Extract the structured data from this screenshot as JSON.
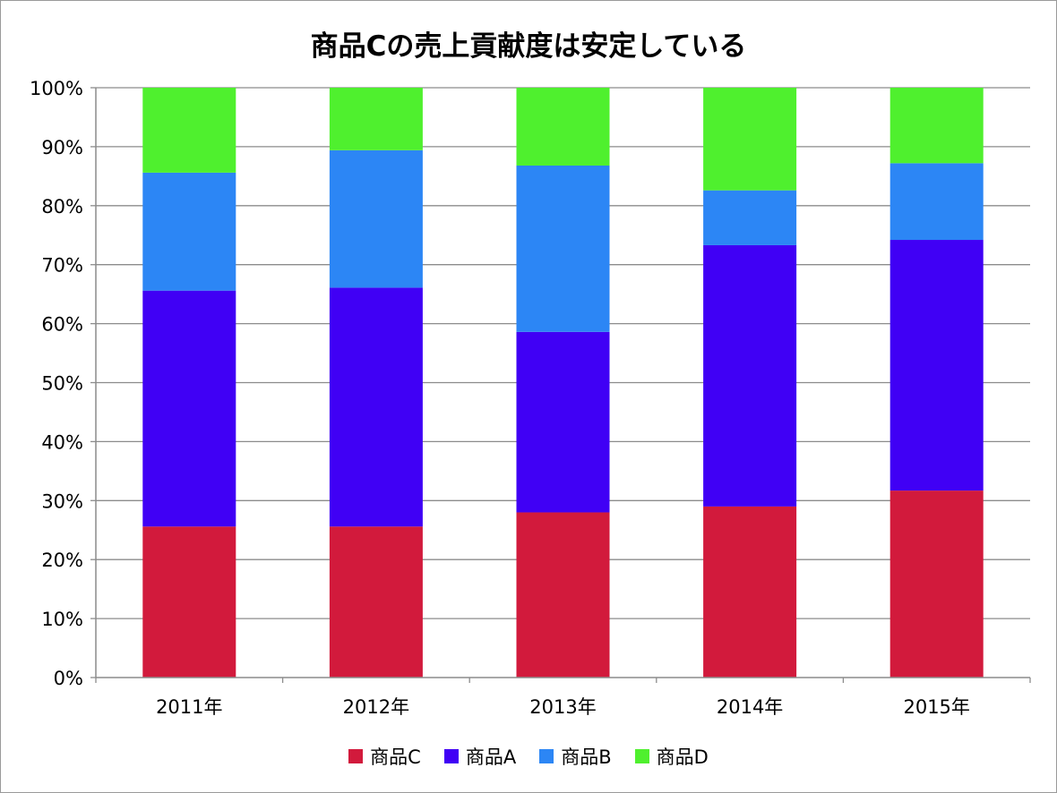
{
  "chart_data": {
    "type": "bar",
    "stacked": true,
    "title": "商品Cの売上貢献度は安定している",
    "categories": [
      "2011年",
      "2012年",
      "2013年",
      "2014年",
      "2015年"
    ],
    "yticks": [
      "0%",
      "10%",
      "20%",
      "30%",
      "40%",
      "50%",
      "60%",
      "70%",
      "80%",
      "90%",
      "100%"
    ],
    "ylim": [
      0,
      100
    ],
    "series": [
      {
        "name": "商品C",
        "color": "#d21a3c",
        "values": [
          25.6,
          25.6,
          28.0,
          29.0,
          31.7
        ]
      },
      {
        "name": "商品A",
        "color": "#4000f5",
        "values": [
          40.0,
          40.5,
          30.6,
          44.3,
          42.5
        ]
      },
      {
        "name": "商品B",
        "color": "#2c86f5",
        "values": [
          20.0,
          23.3,
          28.2,
          9.3,
          13.0
        ]
      },
      {
        "name": "商品D",
        "color": "#4ff02e",
        "values": [
          14.4,
          10.6,
          13.2,
          17.4,
          12.8
        ]
      }
    ],
    "legend_position": "bottom",
    "grid": true
  }
}
